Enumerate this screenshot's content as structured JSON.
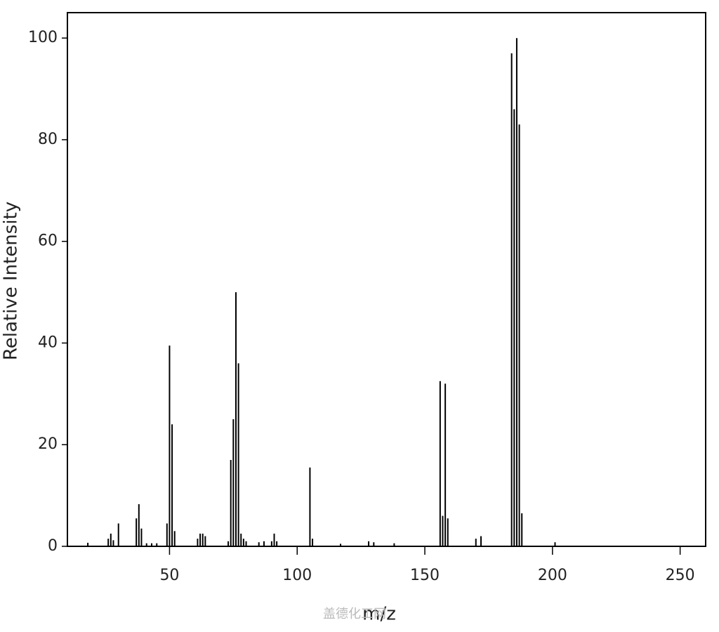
{
  "chart_data": {
    "type": "stem",
    "x_label": "m/z",
    "y_label": "Relative Intensity",
    "watermark": "盖德化工网",
    "x": [
      18,
      26,
      27,
      28,
      30,
      37,
      38,
      39,
      41,
      43,
      45,
      49,
      50,
      51,
      52,
      61,
      62,
      63,
      64,
      73,
      74,
      75,
      76,
      77,
      78,
      79,
      80,
      85,
      87,
      90,
      91,
      92,
      105,
      106,
      117,
      128,
      130,
      138,
      156,
      157,
      158,
      159,
      170,
      172,
      184,
      185,
      186,
      187,
      188,
      201
    ],
    "values": [
      0.7,
      1.5,
      2.5,
      1.2,
      4.5,
      5.5,
      8.3,
      3.5,
      0.6,
      0.6,
      0.6,
      4.5,
      39.5,
      24,
      3,
      1.5,
      2.5,
      2.5,
      2,
      1,
      17,
      25,
      50,
      36,
      2.5,
      1.5,
      1,
      0.8,
      1,
      1,
      2.5,
      1,
      15.5,
      1.5,
      0.5,
      1,
      0.8,
      0.6,
      32.5,
      6,
      32,
      5.5,
      1.5,
      2,
      97,
      86,
      100,
      83,
      6.5,
      0.8
    ],
    "color": "#000000",
    "xlim": [
      10,
      260
    ],
    "xticks": [
      50,
      100,
      150,
      200,
      250
    ],
    "ylim": [
      0,
      105
    ],
    "yticks": [
      0,
      20,
      40,
      60,
      80,
      100
    ]
  }
}
